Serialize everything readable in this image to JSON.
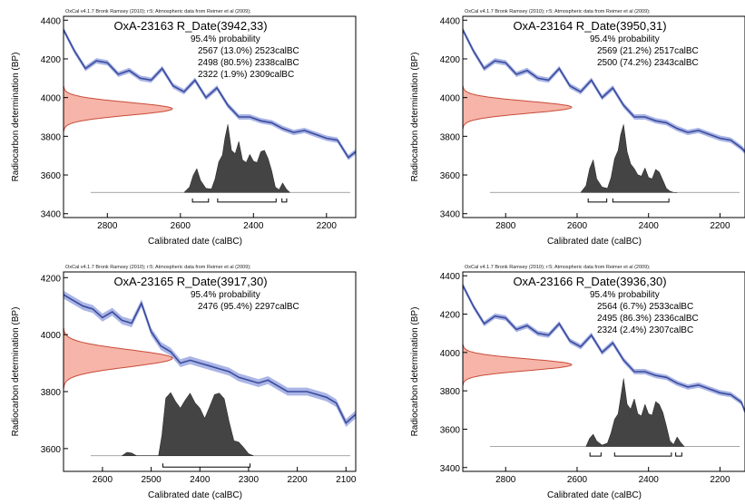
{
  "figure": {
    "panels": [
      {
        "header": "OxCal v4.1.7 Bronk Ramsey (2010); r:5; Atmospheric data from Reimer et al (2009);",
        "title": "OxA-23163 R_Date(3942,33)",
        "prob_title": "95.4% probability",
        "prob_lines": [
          "2567 (13.0%) 2523calBC",
          "2498 (80.5%) 2338calBC",
          "2322 (1.9%) 2309calBC"
        ],
        "xlabel": "Calibrated date (calBC)",
        "ylabel": "Radiocarbon determination (BP)",
        "xlim": [
          2920,
          2120
        ],
        "ylim": [
          3380,
          4420
        ],
        "xticks": [
          "2800",
          "2600",
          "2400",
          "2200"
        ],
        "xtick_values": [
          2800,
          2600,
          2400,
          2200
        ],
        "yticks": [
          "3400",
          "3600",
          "3800",
          "4000",
          "4200",
          "4400"
        ],
        "ytick_values": [
          3400,
          3600,
          3800,
          4000,
          4200,
          4400
        ]
      },
      {
        "header": "OxCal v4.1.7 Bronk Ramsey (2010); r:5; Atmospheric data from Reimer et al (2009);",
        "title": "OxA-23164 R_Date(3950,31)",
        "prob_title": "95.4% probability",
        "prob_lines": [
          "2569 (21.2%) 2517calBC",
          "2500 (74.2%) 2343calBC"
        ],
        "xlabel": "Calibrated date (calBC)",
        "ylabel": "Radiocarbon determination (BP)",
        "xlim": [
          2920,
          2130
        ],
        "ylim": [
          3380,
          4420
        ],
        "xticks": [
          "2800",
          "2600",
          "2400",
          "2200"
        ],
        "xtick_values": [
          2800,
          2600,
          2400,
          2200
        ],
        "yticks": [
          "3400",
          "3600",
          "3800",
          "4000",
          "4200",
          "4400"
        ],
        "ytick_values": [
          3400,
          3600,
          3800,
          4000,
          4200,
          4400
        ]
      },
      {
        "header": "OxCal v4.1.7 Bronk Ramsey (2010); r:5; Atmospheric data from Reimer et al (2009);",
        "title": "OxA-23165 R_Date(3917,30)",
        "prob_title": "95.4% probability",
        "prob_lines": [
          "2476 (95.4%) 2297calBC"
        ],
        "xlabel": "Calibrated date (calBC)",
        "ylabel": "Radiocarbon determination (BP)",
        "xlim": [
          2680,
          2080
        ],
        "ylim": [
          3520,
          4220
        ],
        "xticks": [
          "2600",
          "2500",
          "2400",
          "2300",
          "2200",
          "2100"
        ],
        "xtick_values": [
          2600,
          2500,
          2400,
          2300,
          2200,
          2100
        ],
        "yticks": [
          "3600",
          "3800",
          "4000",
          "4200"
        ],
        "ytick_values": [
          3600,
          3800,
          4000,
          4200
        ]
      },
      {
        "header": "OxCal v4.1.7 Bronk Ramsey (2010); r:5; Atmospheric data from Reimer et al (2009);",
        "title": "OxA-23166 R_Date(3936,30)",
        "prob_title": "95.4% probability",
        "prob_lines": [
          "2564 (6.7%) 2533calBC",
          "2495 (86.3%) 2336calBC",
          "2324 (2.4%) 2307calBC"
        ],
        "xlabel": "Calibrated date (calBC)",
        "ylabel": "Radiocarbon determination (BP)",
        "xlim": [
          2920,
          2130
        ],
        "ylim": [
          3380,
          4420
        ],
        "xticks": [
          "2800",
          "2600",
          "2400",
          "2200"
        ],
        "xtick_values": [
          2800,
          2600,
          2400,
          2200
        ],
        "yticks": [
          "3400",
          "3600",
          "3800",
          "4000",
          "4200",
          "4400"
        ],
        "ytick_values": [
          3400,
          3600,
          3800,
          4000,
          4200,
          4400
        ]
      }
    ]
  },
  "chart_data": [
    {
      "type": "area",
      "title": "OxA-23163 R_Date(3942,33)",
      "xlabel": "Calibrated date (calBC)",
      "ylabel": "Radiocarbon determination (BP)",
      "xlim": [
        2920,
        2120
      ],
      "ylim": [
        3380,
        4420
      ],
      "x_reversed": true,
      "measurement": {
        "bp": 3942,
        "error": 33
      },
      "calibration_curve": {
        "x": [
          2920,
          2890,
          2860,
          2830,
          2800,
          2770,
          2740,
          2710,
          2680,
          2650,
          2620,
          2590,
          2560,
          2530,
          2500,
          2470,
          2440,
          2410,
          2380,
          2350,
          2320,
          2290,
          2260,
          2230,
          2200,
          2170,
          2140,
          2120
        ],
        "y": [
          4350,
          4240,
          4150,
          4190,
          4180,
          4120,
          4140,
          4100,
          4090,
          4150,
          4060,
          4030,
          4090,
          4000,
          4050,
          3960,
          3900,
          3900,
          3880,
          3870,
          3840,
          3820,
          3830,
          3810,
          3790,
          3780,
          3690,
          3720
        ]
      },
      "calibrated_distribution": {
        "x": [
          2590,
          2575,
          2565,
          2555,
          2545,
          2530,
          2515,
          2505,
          2495,
          2485,
          2478,
          2470,
          2460,
          2450,
          2440,
          2430,
          2420,
          2410,
          2400,
          2390,
          2380,
          2370,
          2360,
          2350,
          2340,
          2330,
          2320,
          2310,
          2300
        ],
        "density": [
          0.0,
          0.08,
          0.25,
          0.35,
          0.18,
          0.06,
          0.05,
          0.2,
          0.45,
          0.55,
          0.8,
          1.0,
          0.62,
          0.57,
          0.75,
          0.48,
          0.44,
          0.56,
          0.46,
          0.44,
          0.6,
          0.62,
          0.5,
          0.32,
          0.08,
          0.04,
          0.14,
          0.05,
          0.0
        ]
      },
      "ranges_95_4": [
        [
          2567,
          2523,
          13.0
        ],
        [
          2498,
          2338,
          80.5
        ],
        [
          2322,
          2309,
          1.9
        ]
      ]
    },
    {
      "type": "area",
      "title": "OxA-23164 R_Date(3950,31)",
      "xlabel": "Calibrated date (calBC)",
      "ylabel": "Radiocarbon determination (BP)",
      "xlim": [
        2920,
        2130
      ],
      "ylim": [
        3380,
        4420
      ],
      "x_reversed": true,
      "measurement": {
        "bp": 3950,
        "error": 31
      },
      "calibration_curve": {
        "x": [
          2920,
          2890,
          2860,
          2830,
          2800,
          2770,
          2740,
          2710,
          2680,
          2650,
          2620,
          2590,
          2560,
          2530,
          2500,
          2470,
          2440,
          2410,
          2380,
          2350,
          2320,
          2290,
          2260,
          2230,
          2200,
          2170,
          2140,
          2130
        ],
        "y": [
          4350,
          4240,
          4150,
          4190,
          4180,
          4120,
          4140,
          4100,
          4090,
          4150,
          4060,
          4030,
          4090,
          4000,
          4050,
          3960,
          3900,
          3900,
          3880,
          3870,
          3840,
          3820,
          3830,
          3810,
          3790,
          3780,
          3740,
          3720
        ]
      },
      "calibrated_distribution": {
        "x": [
          2590,
          2575,
          2565,
          2555,
          2545,
          2530,
          2515,
          2505,
          2495,
          2485,
          2478,
          2470,
          2460,
          2450,
          2440,
          2430,
          2420,
          2410,
          2400,
          2390,
          2380,
          2370,
          2360,
          2350,
          2340,
          2330,
          2320
        ],
        "density": [
          0.0,
          0.1,
          0.35,
          0.48,
          0.2,
          0.08,
          0.06,
          0.22,
          0.5,
          0.62,
          0.85,
          1.0,
          0.6,
          0.42,
          0.35,
          0.26,
          0.24,
          0.36,
          0.22,
          0.2,
          0.34,
          0.3,
          0.18,
          0.06,
          0.02,
          0.0,
          0.0
        ]
      },
      "ranges_95_4": [
        [
          2569,
          2517,
          21.2
        ],
        [
          2500,
          2343,
          74.2
        ]
      ]
    },
    {
      "type": "area",
      "title": "OxA-23165 R_Date(3917,30)",
      "xlabel": "Calibrated date (calBC)",
      "ylabel": "Radiocarbon determination (BP)",
      "xlim": [
        2680,
        2080
      ],
      "ylim": [
        3520,
        4220
      ],
      "x_reversed": true,
      "measurement": {
        "bp": 3917,
        "error": 30
      },
      "calibration_curve": {
        "x": [
          2680,
          2660,
          2640,
          2620,
          2600,
          2580,
          2560,
          2540,
          2520,
          2500,
          2480,
          2460,
          2440,
          2420,
          2400,
          2380,
          2360,
          2340,
          2320,
          2300,
          2280,
          2260,
          2240,
          2220,
          2200,
          2180,
          2160,
          2140,
          2120,
          2100,
          2080
        ],
        "y": [
          4140,
          4120,
          4100,
          4090,
          4060,
          4080,
          4050,
          4040,
          4110,
          4010,
          3960,
          3940,
          3900,
          3910,
          3900,
          3890,
          3880,
          3870,
          3850,
          3840,
          3830,
          3840,
          3820,
          3800,
          3800,
          3800,
          3790,
          3780,
          3760,
          3690,
          3720
        ]
      },
      "calibrated_distribution": {
        "x": [
          2560,
          2550,
          2540,
          2530,
          2485,
          2478,
          2470,
          2460,
          2450,
          2440,
          2430,
          2420,
          2410,
          2400,
          2390,
          2380,
          2370,
          2360,
          2350,
          2340,
          2330,
          2320,
          2310,
          2300,
          2290
        ],
        "density": [
          0.0,
          0.05,
          0.04,
          0.0,
          0.0,
          0.3,
          0.85,
          0.93,
          0.8,
          0.7,
          0.82,
          0.92,
          0.78,
          0.7,
          0.55,
          0.72,
          0.9,
          0.92,
          0.84,
          0.5,
          0.22,
          0.2,
          0.12,
          0.03,
          0.0
        ]
      },
      "ranges_95_4": [
        [
          2476,
          2297,
          95.4
        ]
      ]
    },
    {
      "type": "area",
      "title": "OxA-23166 R_Date(3936,30)",
      "xlabel": "Calibrated date (calBC)",
      "ylabel": "Radiocarbon determination (BP)",
      "xlim": [
        2920,
        2130
      ],
      "ylim": [
        3380,
        4420
      ],
      "x_reversed": true,
      "measurement": {
        "bp": 3936,
        "error": 30
      },
      "calibration_curve": {
        "x": [
          2920,
          2890,
          2860,
          2830,
          2800,
          2770,
          2740,
          2710,
          2680,
          2650,
          2620,
          2590,
          2560,
          2530,
          2500,
          2470,
          2440,
          2410,
          2380,
          2350,
          2320,
          2290,
          2260,
          2230,
          2200,
          2170,
          2140,
          2130
        ],
        "y": [
          4350,
          4240,
          4150,
          4190,
          4180,
          4120,
          4140,
          4100,
          4090,
          4150,
          4060,
          4030,
          4090,
          4000,
          4050,
          3960,
          3900,
          3900,
          3880,
          3870,
          3840,
          3820,
          3830,
          3810,
          3790,
          3780,
          3740,
          3690
        ]
      },
      "calibrated_distribution": {
        "x": [
          2575,
          2565,
          2555,
          2545,
          2530,
          2515,
          2505,
          2495,
          2485,
          2478,
          2470,
          2460,
          2450,
          2440,
          2430,
          2420,
          2410,
          2400,
          2390,
          2380,
          2370,
          2360,
          2350,
          2340,
          2330,
          2320,
          2310,
          2300
        ],
        "density": [
          0.0,
          0.12,
          0.18,
          0.08,
          0.02,
          0.05,
          0.2,
          0.4,
          0.48,
          0.72,
          1.0,
          0.62,
          0.55,
          0.7,
          0.48,
          0.45,
          0.62,
          0.48,
          0.46,
          0.66,
          0.62,
          0.5,
          0.3,
          0.08,
          0.03,
          0.14,
          0.06,
          0.0
        ]
      },
      "ranges_95_4": [
        [
          2564,
          2533,
          6.7
        ],
        [
          2495,
          2336,
          86.3
        ],
        [
          2324,
          2307,
          2.4
        ]
      ]
    }
  ],
  "colors": {
    "curve_line": "#3a4b9c",
    "curve_band": "#aab5e6",
    "measurement_fill": "#f6b5a8",
    "measurement_line": "#c84b3a",
    "distribution": "#444444",
    "text": "#000000"
  }
}
